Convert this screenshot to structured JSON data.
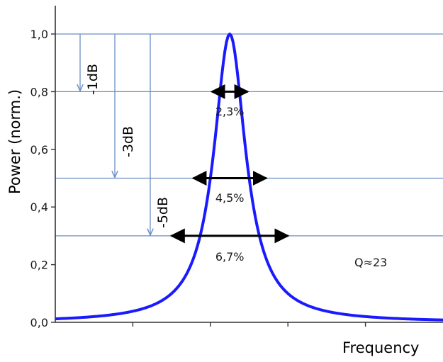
{
  "chart_data": {
    "type": "line",
    "title": "",
    "xlabel": "Frequency",
    "ylabel": "Power (norm.)",
    "ylim": [
      0,
      1.0
    ],
    "xlim": [
      0,
      10
    ],
    "y_ticks": [
      "0,0",
      "0,2",
      "0,4",
      "0,6",
      "0,8",
      "1,0"
    ],
    "y_tick_values": [
      0,
      0.2,
      0.4,
      0.6,
      0.8,
      1.0
    ],
    "x_ticks_unlabeled": [
      2,
      4,
      6,
      8
    ],
    "grid": false,
    "colors": {
      "curve": "#1a1aff",
      "reference_lines": "#6b8fc4",
      "arrows": "#000000"
    },
    "series": [
      {
        "x": [
          0,
          0.5,
          1,
          1.5,
          2,
          2.5,
          3,
          3.5,
          4,
          4.25,
          4.5,
          4.75,
          5,
          5.25,
          5.5,
          5.75,
          6,
          6.25,
          6.5,
          6.75,
          7,
          7.5,
          8,
          8.5,
          9,
          9.5,
          10
        ],
        "y": [
          0.044,
          0.055,
          0.07,
          0.092,
          0.124,
          0.177,
          0.27,
          0.453,
          0.8,
          0.942,
          1.0,
          0.942,
          0.8,
          0.625,
          0.453,
          0.344,
          0.27,
          0.218,
          0.177,
          0.148,
          0.124,
          0.092,
          0.07,
          0.055,
          0.044,
          0.036,
          0.03
        ]
      }
    ],
    "reference_levels": [
      {
        "value": 1.0,
        "label": ""
      },
      {
        "value": 0.8,
        "label": "-1dB"
      },
      {
        "value": 0.5,
        "label": "-3dB"
      },
      {
        "value": 0.3,
        "label": "-5dB"
      }
    ],
    "width_annotations": [
      {
        "level": 0.8,
        "x_start": 4.0,
        "x_end": 5.0,
        "label": "2,3%"
      },
      {
        "level": 0.5,
        "x_start": 3.52,
        "x_end": 5.48,
        "label": "4,5%"
      },
      {
        "level": 0.3,
        "x_start": 2.96,
        "x_end": 6.04,
        "label": "6,7%"
      }
    ],
    "q_annotation": "Q≈23"
  }
}
